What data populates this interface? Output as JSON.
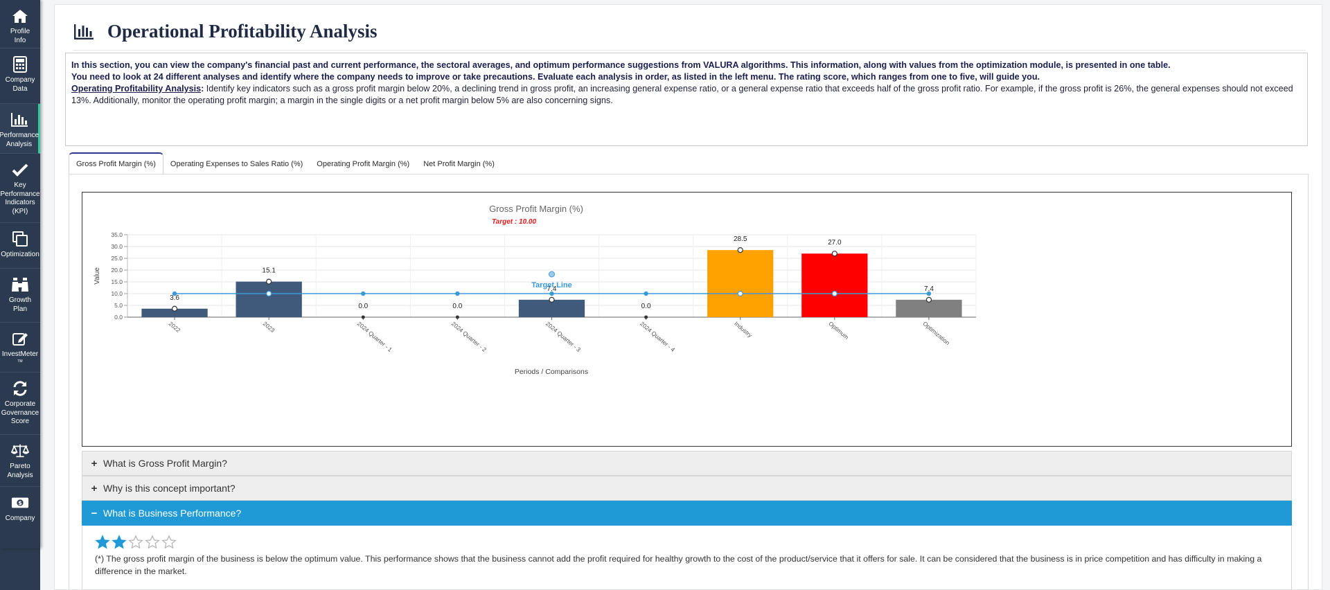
{
  "sidebar": {
    "items": [
      {
        "label": "Profile\nInfo",
        "icon": "home-icon"
      },
      {
        "label": "Company\nData",
        "icon": "calculator-icon"
      },
      {
        "label": "Performance\nAnalysis",
        "icon": "bar-chart-icon",
        "active": true
      },
      {
        "label": "Key\nPerformance\nIndicators\n(KPI)",
        "icon": "check-icon"
      },
      {
        "label": "Optimization",
        "icon": "copy-icon"
      },
      {
        "label": "Growth\nPlan",
        "icon": "binoculars-icon"
      },
      {
        "label": "InvestMeter",
        "tm": "TM",
        "icon": "edit-icon"
      },
      {
        "label": "Corporate\nGovernance\nScore",
        "icon": "refresh-icon"
      },
      {
        "label": "Pareto\nAnalysis",
        "icon": "balance-scale-icon"
      },
      {
        "label": "Company",
        "icon": "money-icon"
      }
    ]
  },
  "header": {
    "title": "Operational Profitability Analysis"
  },
  "info": {
    "line1": "In this section, you can view the company's financial past and current performance, the sectoral averages, and optimum performance suggestions from VALURA algorithms. This information, along with values from the optimization module, is presented in one table.",
    "line2": "You need to look at 24 different analyses and identify where the company needs to improve or take precautions. Evaluate each analysis in order, as listed in the left menu. The rating score, which ranges from one to five, will guide you.",
    "heading": "Operating Profitability Analysis",
    "colon": ":",
    "body": " Identify key indicators such as a gross profit margin below 20%, a declining trend in gross profit, an increasing general expense ratio, or a general expense ratio that exceeds half of the gross profit ratio. For example, if the gross profit is 26%, the general expenses should not exceed 13%. Additionally, monitor the operating profit margin; a margin in the single digits or a net profit margin below 5% are also concerning signs."
  },
  "tabs": [
    {
      "label": "Gross Profit Margin (%)",
      "active": true
    },
    {
      "label": "Operating Expenses to Sales Ratio (%)"
    },
    {
      "label": "Operating Profit Margin (%)"
    },
    {
      "label": "Net Profit Margin (%)"
    }
  ],
  "chart_data": {
    "type": "bar",
    "title": "Gross Profit Margin (%)",
    "subtitle": "Target : 10.00",
    "xlabel": "Periods / Comparisons",
    "ylabel": "Value",
    "ylim": [
      0,
      35
    ],
    "yticks": [
      "0.0",
      "5.0",
      "10.0",
      "15.0",
      "20.0",
      "25.0",
      "30.0",
      "35.0"
    ],
    "categories": [
      "2022",
      "2023",
      "2024 Quarter - 1",
      "2024 Quarter - 2",
      "2024 Quarter - 3",
      "2024 Quarter - 4",
      "Industry",
      "Optimum",
      "Optimization"
    ],
    "values": [
      3.6,
      15.1,
      0.0,
      0.0,
      7.4,
      0.0,
      28.5,
      27.0,
      7.4
    ],
    "value_labels": [
      "3.6",
      "15.1",
      "0.0",
      "0.0",
      "7.4",
      "0.0",
      "28.5",
      "27.0",
      "7.4"
    ],
    "bar_colors": [
      "#3f5a7a",
      "#3f5a7a",
      "#3f5a7a",
      "#3f5a7a",
      "#3f5a7a",
      "#3f5a7a",
      "#ffa200",
      "#ff0000",
      "#808080"
    ],
    "target_line": {
      "label": "Target Line",
      "value": 10.0,
      "color": "#3a9ad9"
    },
    "colors": {
      "title": "#666666",
      "subtitle": "#e01b1b",
      "grid": "#e6e6e6"
    }
  },
  "accordion": [
    {
      "label": "What is Gross Profit Margin?",
      "symbol": "+",
      "open": false
    },
    {
      "label": "Why is this concept important?",
      "symbol": "+",
      "open": false
    },
    {
      "label": "What is Business Performance?",
      "symbol": "−",
      "open": true
    }
  ],
  "performance": {
    "rating": 2,
    "max_rating": 5,
    "text": "(*) The gross profit margin of the business is below the optimum value. This performance shows that the business cannot add the profit required for healthy growth to the cost of the product/service that it offers for sale. It can be considered that the business is in price competition and has difficulty in making a difference in the market."
  }
}
